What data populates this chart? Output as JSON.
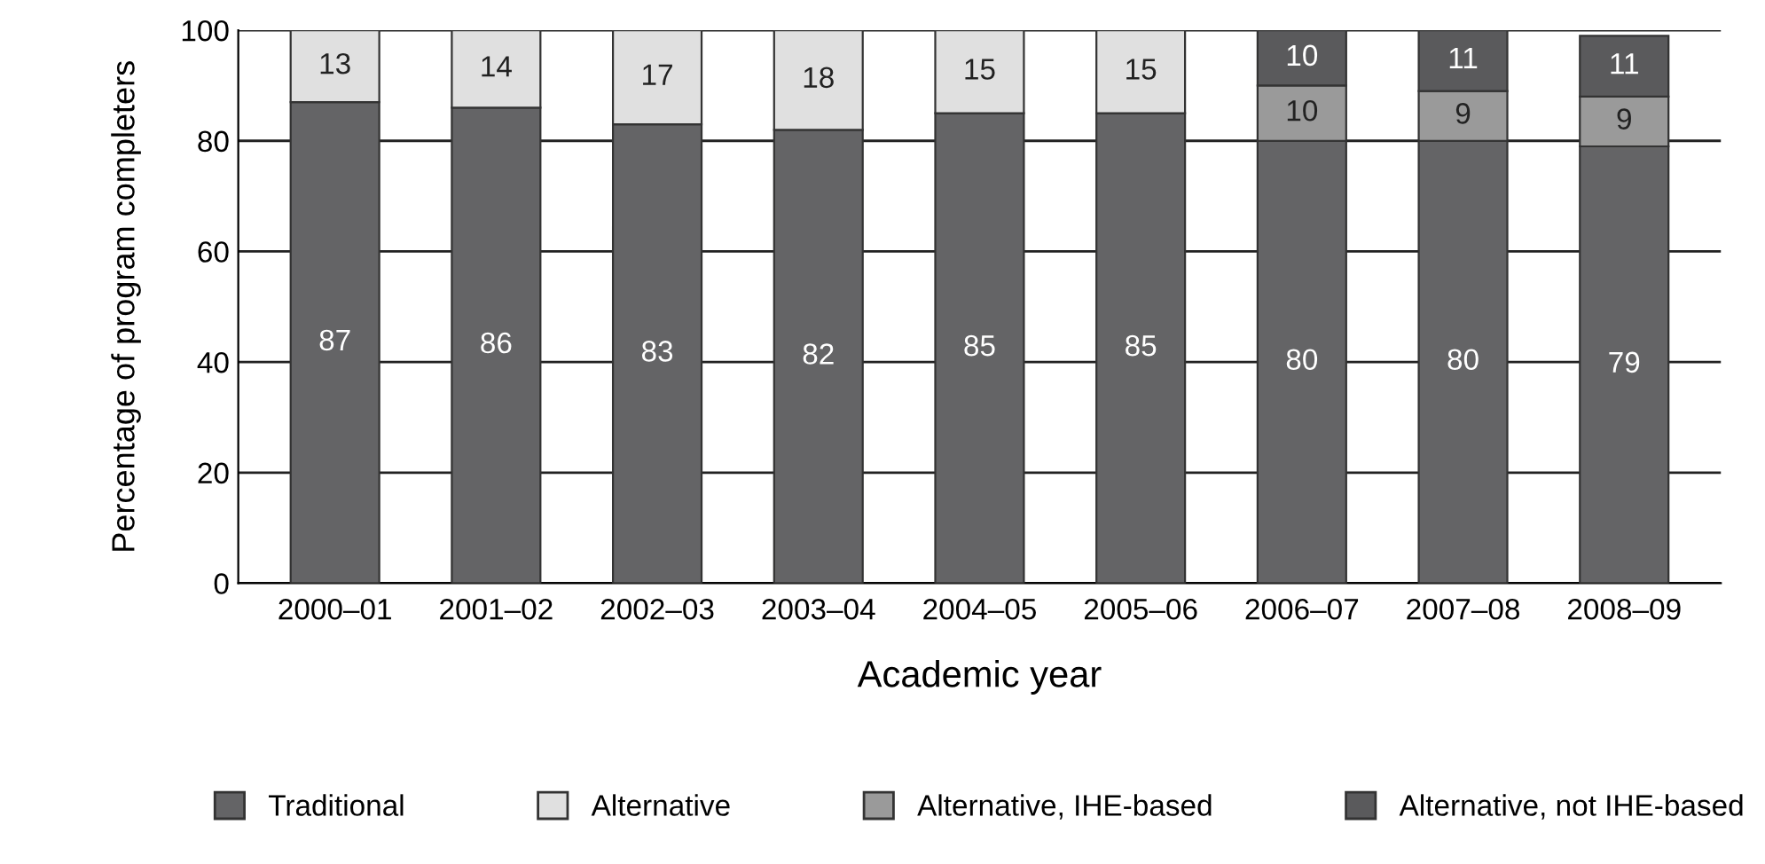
{
  "chart_data": {
    "type": "bar",
    "stacked": true,
    "xlabel": "Academic year",
    "ylabel": "Percentage of program completers",
    "categories": [
      "2000–01",
      "2001–02",
      "2002–03",
      "2003–04",
      "2004–05",
      "2005–06",
      "2006–07",
      "2007–08",
      "2008–09"
    ],
    "series": [
      {
        "name": "Traditional",
        "color": "#646466",
        "values": [
          87,
          86,
          83,
          82,
          85,
          85,
          80,
          80,
          79
        ]
      },
      {
        "name": "Alternative",
        "color": "#e0e0e0",
        "values": [
          13,
          14,
          17,
          18,
          15,
          15,
          null,
          null,
          null
        ]
      },
      {
        "name": "Alternative, IHE-based",
        "color": "#9a9a9a",
        "values": [
          null,
          null,
          null,
          null,
          null,
          null,
          10,
          9,
          9
        ]
      },
      {
        "name": "Alternative, not IHE-based",
        "color": "#5a5a5c",
        "values": [
          null,
          null,
          null,
          null,
          null,
          null,
          10,
          11,
          11
        ]
      }
    ],
    "ylim": [
      0,
      100
    ],
    "yticks": [
      0,
      20,
      40,
      60,
      80,
      100
    ],
    "grid": "y",
    "legend": "bottom",
    "data_labels": true
  }
}
